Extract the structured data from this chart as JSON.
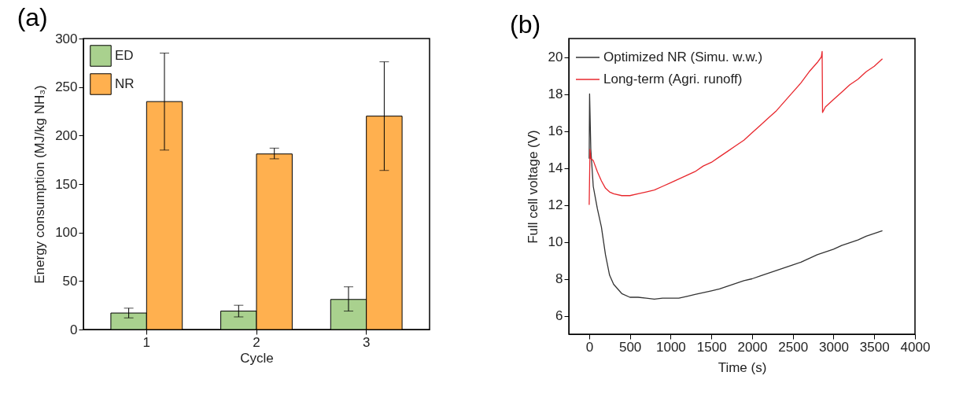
{
  "chart_data": [
    {
      "type": "bar",
      "title": "(a)",
      "xlabel": "Cycle",
      "ylabel": "Energy consumption (MJ/kg NH₃)",
      "categories": [
        "1",
        "2",
        "3"
      ],
      "series": [
        {
          "name": "ED",
          "color": "#a9d18e",
          "values": [
            17,
            19,
            31
          ],
          "errors": [
            [
              12,
              22
            ],
            [
              13,
              25
            ],
            [
              19,
              44
            ]
          ]
        },
        {
          "name": "NR",
          "color": "#ffb04f",
          "values": [
            235,
            181,
            220
          ],
          "errors": [
            [
              185,
              285
            ],
            [
              176,
              187
            ],
            [
              164,
              276
            ]
          ]
        }
      ],
      "ylim": [
        0,
        300
      ],
      "yticks": [
        0,
        50,
        100,
        150,
        200,
        250,
        300
      ],
      "grid": false,
      "legend": "top left"
    },
    {
      "type": "line",
      "title": "(b)",
      "xlabel": "Time (s)",
      "ylabel": "Full cell voltage (V)",
      "series": [
        {
          "name": "Optimized NR (Simu. w.w.)",
          "color": "#333333",
          "x": [
            0,
            5,
            20,
            50,
            100,
            150,
            200,
            250,
            300,
            400,
            500,
            600,
            700,
            800,
            900,
            1000,
            1100,
            1200,
            1300,
            1400,
            1500,
            1600,
            1700,
            1800,
            1900,
            2000,
            2100,
            2200,
            2300,
            2400,
            2500,
            2600,
            2700,
            2800,
            2900,
            3000,
            3100,
            3200,
            3300,
            3400,
            3500,
            3600
          ],
          "values": [
            14.5,
            18.0,
            15.0,
            13.0,
            11.8,
            10.8,
            9.3,
            8.2,
            7.7,
            7.2,
            7.0,
            7.0,
            6.95,
            6.9,
            6.95,
            6.95,
            6.95,
            7.05,
            7.15,
            7.25,
            7.35,
            7.45,
            7.6,
            7.75,
            7.9,
            8.0,
            8.15,
            8.3,
            8.45,
            8.6,
            8.75,
            8.9,
            9.1,
            9.3,
            9.45,
            9.6,
            9.8,
            9.95,
            10.1,
            10.3,
            10.45,
            10.6
          ]
        },
        {
          "name": "Long-term (Agri. runoff)",
          "color": "#e8282e",
          "x": [
            0,
            10,
            20,
            50,
            100,
            150,
            200,
            250,
            300,
            400,
            500,
            600,
            700,
            800,
            900,
            1000,
            1100,
            1200,
            1300,
            1400,
            1500,
            1600,
            1700,
            1800,
            1900,
            2000,
            2100,
            2200,
            2300,
            2400,
            2500,
            2600,
            2700,
            2800,
            2850,
            2860,
            2865,
            2900,
            3000,
            3100,
            3200,
            3300,
            3400,
            3500,
            3600
          ],
          "values": [
            12.0,
            15.0,
            14.5,
            14.4,
            13.8,
            13.3,
            12.9,
            12.7,
            12.6,
            12.5,
            12.5,
            12.6,
            12.7,
            12.8,
            13.0,
            13.2,
            13.4,
            13.6,
            13.8,
            14.1,
            14.3,
            14.6,
            14.9,
            15.2,
            15.5,
            15.9,
            16.3,
            16.7,
            17.1,
            17.6,
            18.1,
            18.6,
            19.2,
            19.7,
            20.0,
            20.3,
            17.0,
            17.3,
            17.7,
            18.1,
            18.5,
            18.8,
            19.2,
            19.5,
            19.9
          ]
        }
      ],
      "xlim": [
        -250,
        4000
      ],
      "xticks": [
        0,
        500,
        1000,
        1500,
        2000,
        2500,
        3000,
        3500,
        4000
      ],
      "ylim": [
        5,
        21
      ],
      "yticks": [
        6,
        8,
        10,
        12,
        14,
        16,
        18,
        20
      ],
      "grid": false,
      "legend": "top left"
    }
  ]
}
